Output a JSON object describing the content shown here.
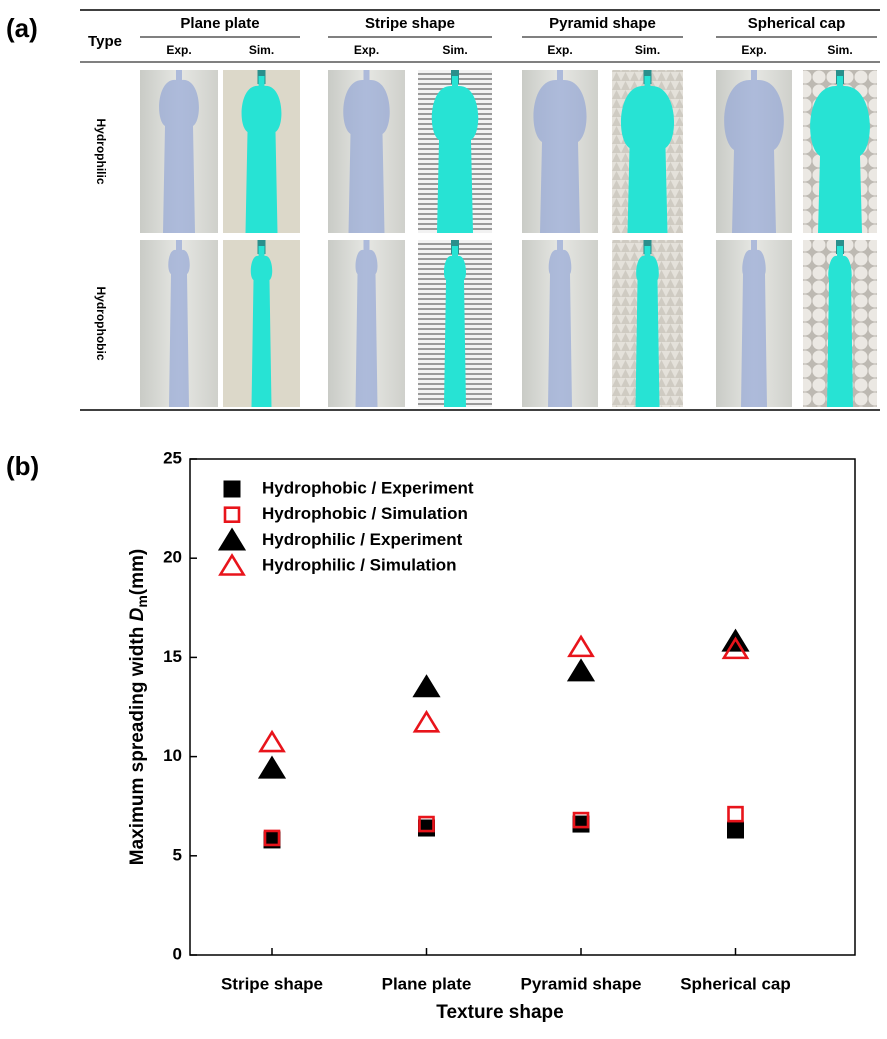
{
  "panel_a": {
    "label": "(a)",
    "type_header": "Type",
    "columns": [
      {
        "name": "Plane plate",
        "exp": "Exp.",
        "sim": "Sim."
      },
      {
        "name": "Stripe shape",
        "exp": "Exp.",
        "sim": "Sim."
      },
      {
        "name": "Pyramid shape",
        "exp": "Exp.",
        "sim": "Sim."
      },
      {
        "name": "Spherical cap",
        "exp": "Exp.",
        "sim": "Sim."
      }
    ],
    "rows": [
      "Hydrophilic",
      "Hydrophobic"
    ]
  },
  "chart_data": {
    "type": "scatter",
    "label": "(b)",
    "xlabel": "Texture shape",
    "ylabel": [
      "Maximum spreading width ",
      "D",
      "m",
      "(mm)"
    ],
    "categories": [
      "Stripe shape",
      "Plane plate",
      "Pyramid shape",
      "Spherical cap"
    ],
    "ylim": [
      0,
      25
    ],
    "yticks": [
      0,
      5,
      10,
      15,
      20,
      25
    ],
    "legend": "upper left",
    "series": [
      {
        "name": "Hydrophobic / Experiment",
        "marker": "square",
        "filled": true,
        "color": "#000000",
        "values": [
          5.8,
          6.4,
          6.6,
          6.3
        ]
      },
      {
        "name": "Hydrophobic / Simulation",
        "marker": "square",
        "filled": false,
        "color": "#e8141b",
        "values": [
          5.9,
          6.6,
          6.8,
          7.1
        ]
      },
      {
        "name": "Hydrophilic / Experiment",
        "marker": "triangle",
        "filled": true,
        "color": "#000000",
        "values": [
          9.4,
          13.5,
          14.3,
          15.8
        ]
      },
      {
        "name": "Hydrophilic / Simulation",
        "marker": "triangle",
        "filled": false,
        "color": "#e8141b",
        "values": [
          10.7,
          11.7,
          15.5,
          15.4
        ]
      }
    ]
  }
}
